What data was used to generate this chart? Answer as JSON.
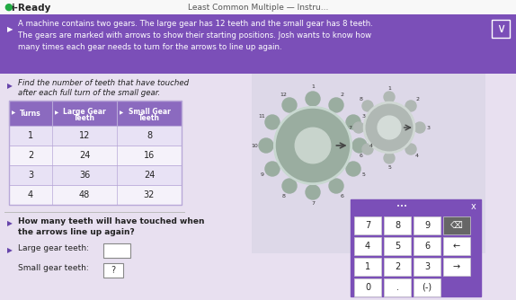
{
  "title_bar_text": "Least Common Multiple — Instru...",
  "iready_logo_text": "i-Ready",
  "header_text_lines": [
    "A machine contains two gears. The large gear has 12 teeth and the small gear has 8 teeth.",
    "The gears are marked with arrows to show their starting positions. Josh wants to know how",
    "many times each gear needs to turn for the arrows to line up again."
  ],
  "find_label_lines": [
    "Find the number of teeth that have touched",
    "after each full turn of the small gear."
  ],
  "table_header": [
    "Turns",
    "Large Gear\nTeeth",
    "Small Gear\nTeeth"
  ],
  "table_data": [
    [
      1,
      12,
      8
    ],
    [
      2,
      24,
      16
    ],
    [
      3,
      36,
      24
    ],
    [
      4,
      48,
      32
    ]
  ],
  "question_text_lines": [
    "How many teeth will have touched when",
    "the arrows line up again?"
  ],
  "large_gear_label": "Large gear teeth:",
  "small_gear_label": "Small gear teeth:",
  "small_gear_answer": "?",
  "header_bg": "#7b4fb8",
  "title_bar_bg": "#f5f5f5",
  "table_header_bg": "#8b6abf",
  "table_row_bg_odd": "#f5f2fa",
  "table_row_bg_even": "#e8e2f5",
  "table_border": "#b8a8d8",
  "body_bg": "#e8e0f0",
  "calc_bg": "#7b4fb8",
  "calc_button_bg": "#ffffff",
  "calc_text_color": "#222222",
  "speaker_color": "#6644aa",
  "gear_large_body": "#9aada0",
  "gear_large_inner": "#c8d4cc",
  "gear_small_body": "#b0b8b4",
  "gear_small_inner": "#d4dcd8",
  "gear_bg": "#ddd8e8"
}
